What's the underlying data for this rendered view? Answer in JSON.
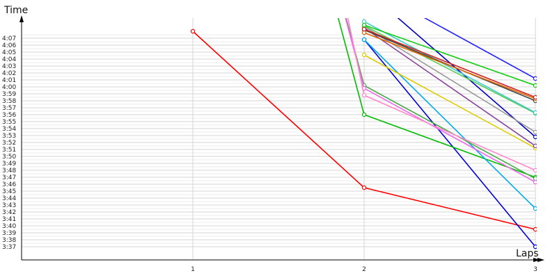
{
  "chart_data": {
    "type": "line",
    "xlabel": "Laps",
    "ylabel": "Time",
    "x": [
      1,
      2,
      3
    ],
    "x_ticks": [
      "1",
      "2",
      "3"
    ],
    "xlim": [
      0,
      3
    ],
    "ylim_seconds": [
      217,
      249
    ],
    "y_ticks": [
      "3:37",
      "3:38",
      "3:39",
      "3:40",
      "3:41",
      "3:42",
      "3:43",
      "3:44",
      "3:45",
      "3:46",
      "3:47",
      "3:48",
      "3:49",
      "3:50",
      "3:51",
      "3:52",
      "3:53",
      "3:54",
      "3:55",
      "3:56",
      "3:57",
      "3:58",
      "3:59",
      "4:00",
      "4:01",
      "4:02",
      "4:03",
      "4:04",
      "4:05",
      "4:06",
      "4:07"
    ],
    "grid": true,
    "legend": false,
    "series": [
      {
        "color": "#ff0000",
        "points": [
          [
            1,
            "4:08"
          ],
          [
            2,
            "3:45.5"
          ],
          [
            3,
            "3:39.5"
          ]
        ]
      },
      {
        "color": "#0000dd",
        "points": [
          [
            2,
            "4:06.8"
          ],
          [
            3,
            "3:37"
          ]
        ]
      },
      {
        "color": "#00bb00",
        "points": [
          [
            1.5,
            "4:42"
          ],
          [
            2,
            "3:56"
          ],
          [
            3,
            "3:47"
          ]
        ]
      },
      {
        "color": "#00aaee",
        "points": [
          [
            2,
            "4:06.8"
          ],
          [
            3,
            "3:42.5"
          ]
        ]
      },
      {
        "color": "#44aa44",
        "points": [
          [
            1.6,
            "4:37"
          ],
          [
            2,
            "4:00.2"
          ],
          [
            3,
            "3:46.8"
          ]
        ]
      },
      {
        "color": "#ee66ee",
        "points": [
          [
            1.6,
            "4:37"
          ],
          [
            2,
            "3:59.8"
          ],
          [
            3,
            "3:46.3"
          ]
        ]
      },
      {
        "color": "#ff88cc",
        "points": [
          [
            1.7,
            "4:34"
          ],
          [
            2,
            "3:58.8"
          ],
          [
            3,
            "3:48"
          ]
        ]
      },
      {
        "color": "#ddcc00",
        "points": [
          [
            2,
            "4:04.6"
          ],
          [
            3,
            "3:51.2"
          ]
        ]
      },
      {
        "color": "#0000bb",
        "points": [
          [
            2.1,
            "4:12"
          ],
          [
            3,
            "3:52.8"
          ]
        ]
      },
      {
        "color": "#884499",
        "points": [
          [
            2,
            "4:08.5"
          ],
          [
            3,
            "3:51.5"
          ]
        ]
      },
      {
        "color": "#999999",
        "points": [
          [
            2,
            "4:08.7"
          ],
          [
            3,
            "3:53.5"
          ]
        ]
      },
      {
        "color": "#55cc55",
        "points": [
          [
            2,
            "4:08.8"
          ],
          [
            3,
            "3:56.2"
          ]
        ]
      },
      {
        "color": "#44cccc",
        "points": [
          [
            2,
            "4:09.4"
          ],
          [
            3,
            "3:56.3"
          ]
        ]
      },
      {
        "color": "#444444",
        "points": [
          [
            2,
            "4:08.2"
          ],
          [
            3,
            "3:58"
          ]
        ]
      },
      {
        "color": "#dd6600",
        "points": [
          [
            2,
            "4:07.8"
          ],
          [
            3,
            "3:58.3"
          ]
        ]
      },
      {
        "color": "#cc2222",
        "points": [
          [
            2,
            "4:08.3"
          ],
          [
            3,
            "3:58.5"
          ]
        ]
      },
      {
        "color": "#11cc11",
        "points": [
          [
            2,
            "4:08.9"
          ],
          [
            3,
            "4:00.2"
          ]
        ]
      },
      {
        "color": "#2222ff",
        "points": [
          [
            2.2,
            "4:12"
          ],
          [
            3,
            "4:01.2"
          ]
        ]
      }
    ]
  }
}
